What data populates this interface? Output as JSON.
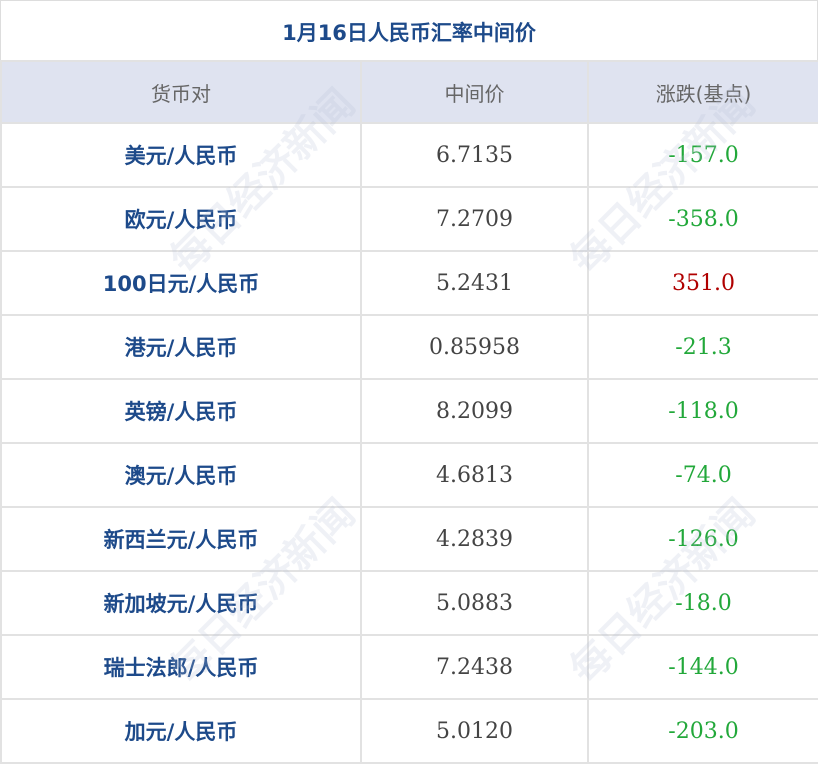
{
  "title": "1月16日人民币汇率中间价",
  "headers": [
    "货币对",
    "中间价",
    "涨跌(基点)"
  ],
  "colors": {
    "up": "#b00000",
    "down": "#22a83a",
    "title": "#1d4a8a",
    "header_bg": "#dfe3f0"
  },
  "watermark": "每日经济新闻",
  "rows": [
    {
      "pair": "美元/人民币",
      "mid": "6.7135",
      "change": "-157.0",
      "dir": "down"
    },
    {
      "pair": "欧元/人民币",
      "mid": "7.2709",
      "change": "-358.0",
      "dir": "down"
    },
    {
      "pair": "100日元/人民币",
      "mid": "5.2431",
      "change": "351.0",
      "dir": "up"
    },
    {
      "pair": "港元/人民币",
      "mid": "0.85958",
      "change": "-21.3",
      "dir": "down"
    },
    {
      "pair": "英镑/人民币",
      "mid": "8.2099",
      "change": "-118.0",
      "dir": "down"
    },
    {
      "pair": "澳元/人民币",
      "mid": "4.6813",
      "change": "-74.0",
      "dir": "down"
    },
    {
      "pair": "新西兰元/人民币",
      "mid": "4.2839",
      "change": "-126.0",
      "dir": "down"
    },
    {
      "pair": "新加坡元/人民币",
      "mid": "5.0883",
      "change": "-18.0",
      "dir": "down"
    },
    {
      "pair": "瑞士法郎/人民币",
      "mid": "7.2438",
      "change": "-144.0",
      "dir": "down"
    },
    {
      "pair": "加元/人民币",
      "mid": "5.0120",
      "change": "-203.0",
      "dir": "down"
    }
  ]
}
